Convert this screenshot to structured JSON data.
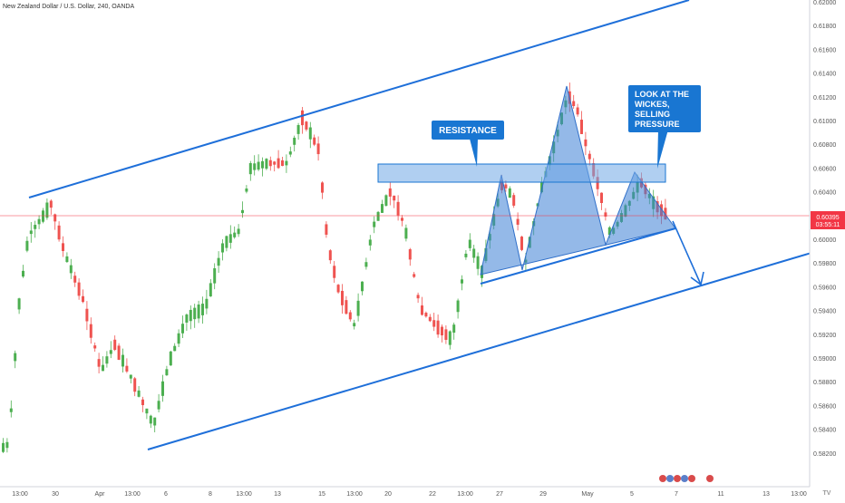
{
  "header": {
    "title": "New Zealand Dollar / U.S. Dollar, 240, OANDA"
  },
  "price_scale": {
    "labels": [
      "0.62000",
      "0.61800",
      "0.61600",
      "0.61400",
      "0.61200",
      "0.61000",
      "0.60800",
      "0.60600",
      "0.60400",
      "0.60200",
      "0.60000",
      "0.59800",
      "0.59600",
      "0.59400",
      "0.59200",
      "0.59000",
      "0.58800",
      "0.58600",
      "0.58400",
      "0.58200"
    ],
    "current_price": "0.60395",
    "countdown": "03:55:11",
    "current_color": "#f23645"
  },
  "time_scale": {
    "labels": [
      "13:00",
      "30",
      "Apr",
      "13:00",
      "6",
      "8",
      "13:00",
      "13",
      "15",
      "13:00",
      "20",
      "22",
      "13:00",
      "27",
      "29",
      "May",
      "5",
      "7",
      "11",
      "13",
      "13:00"
    ]
  },
  "annotations": {
    "resistance": "RESISTANCE",
    "wicks_line1": "LOOK AT THE",
    "wicks_line2": "WICKES,",
    "wicks_line3": "SELLING",
    "wicks_line4": "PRESSURE"
  },
  "colors": {
    "up": "#26a69a",
    "up_fill": "#4caf50",
    "down": "#ef5350",
    "channel": "#1e6fd9",
    "box": "#1976d2",
    "pattern": "#3d7fd6"
  },
  "logo": "TV"
}
